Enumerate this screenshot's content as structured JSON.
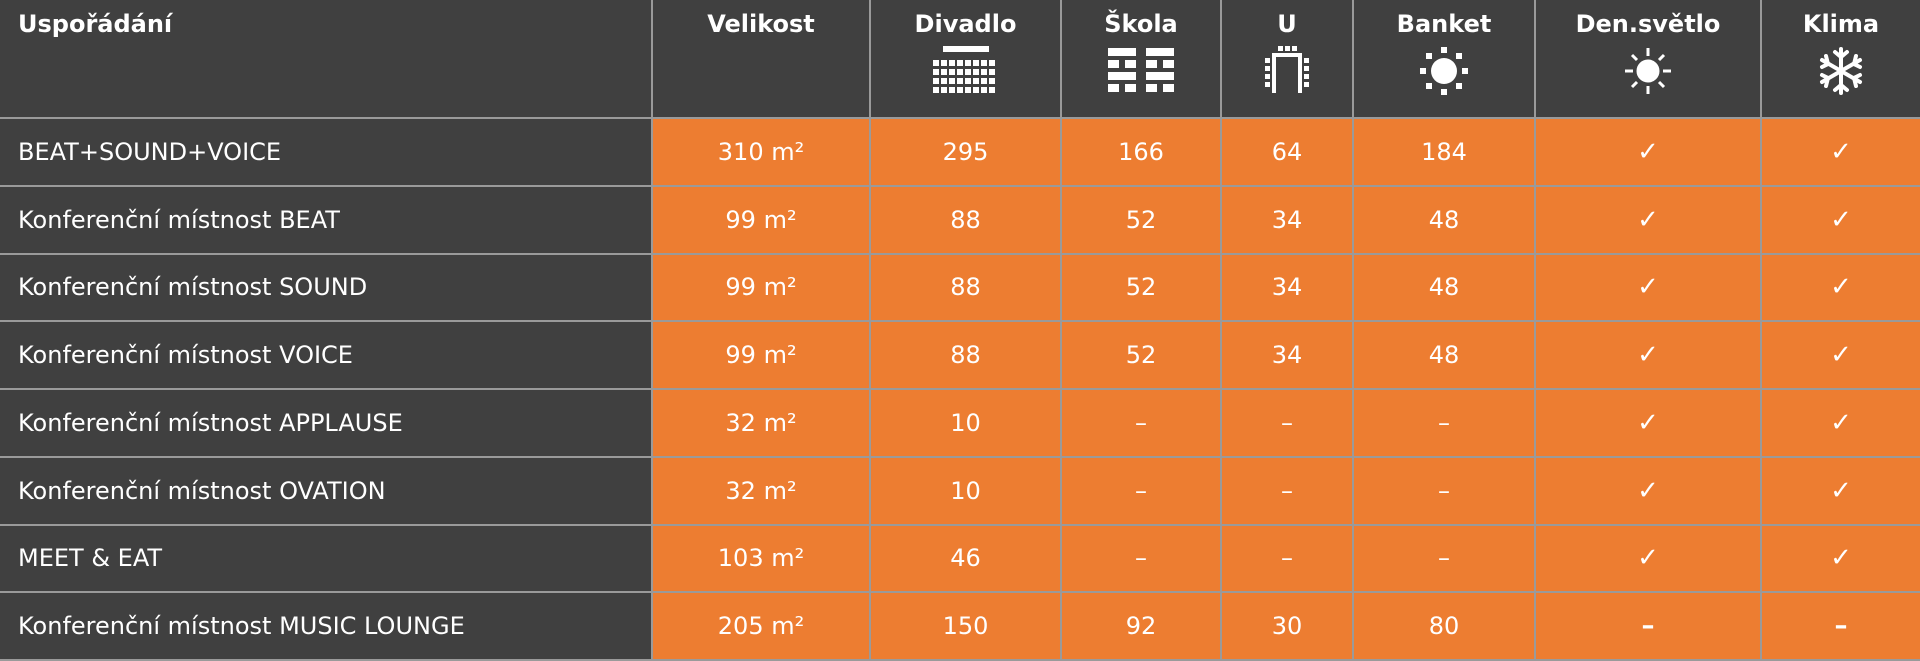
{
  "header": {
    "columns": [
      "Uspořádání",
      "Velikost",
      "Divadlo",
      "Škola",
      "U",
      "Banket",
      "Den.světlo",
      "Klima"
    ]
  },
  "table": {
    "rows": [
      [
        "BEAT+SOUND+VOICE",
        "310 m²",
        "295",
        "166",
        "64",
        "184",
        "✓",
        "✓"
      ],
      [
        "Konferenční místnost BEAT",
        "99 m²",
        "88",
        "52",
        "34",
        "48",
        "✓",
        "✓"
      ],
      [
        "Konferenční místnost SOUND",
        "99 m²",
        "88",
        "52",
        "34",
        "48",
        "✓",
        "✓"
      ],
      [
        "Konferenční místnost VOICE",
        "99 m²",
        "88",
        "52",
        "34",
        "48",
        "✓",
        "✓"
      ],
      [
        "Konferenční místnost APPLAUSE",
        "32 m²",
        "10",
        "–",
        "–",
        "–",
        "✓",
        "✓"
      ],
      [
        "Konferenční místnost OVATION",
        "32 m²",
        "10",
        "–",
        "–",
        "–",
        "✓",
        "✓"
      ],
      [
        "MEET & EAT",
        "103 m²",
        "46",
        "–",
        "–",
        "–",
        "✓",
        "✓"
      ],
      [
        "Konferenční místnost MUSIC LOUNGE",
        "205 m²",
        "150",
        "92",
        "30",
        "80",
        "–",
        "–"
      ]
    ]
  }
}
